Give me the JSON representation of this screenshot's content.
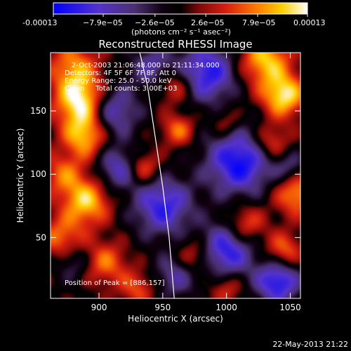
{
  "colorbar": {
    "tick_labels": [
      "-0.00013",
      "−7.9e−05",
      "−2.6e−05",
      "2.6e−05",
      "7.9e−05",
      "0.00013"
    ],
    "tick_values": [
      -0.00013,
      -7.9e-05,
      -2.6e-05,
      2.6e-05,
      7.9e-05,
      0.00013
    ],
    "units_label": "(photons cm⁻² s⁻¹ asec⁻²)",
    "range": [
      -0.00013,
      0.00013
    ]
  },
  "chart_data": {
    "type": "heatmap",
    "title": "Reconstructed RHESSI Image",
    "xlabel": "Heliocentric X (arcsec)",
    "ylabel": "Heliocentric Y (arcsec)",
    "xlim": [
      862,
      1058
    ],
    "ylim": [
      2,
      196
    ],
    "x_ticks": [
      900,
      950,
      1000,
      1050
    ],
    "y_ticks": [
      50,
      100,
      150
    ],
    "colormap": [
      "#0000ff",
      "#6a40b0",
      "#000000",
      "#c01010",
      "#ff8000",
      "#ffff00",
      "#ffffff"
    ],
    "info_lines": [
      "2-Oct-2003 21:06:48.000 to 21:11:34.000",
      "Detectors: 4F 5F 6F 7F 8F, Att 0",
      "Energy Range: 25.0 - 50.0 keV",
      "Clean     Total counts: 3.00E+03"
    ],
    "peak_label": "Position of Peak = [886,157]",
    "peak": [
      886,
      157
    ],
    "limb_curve": [
      [
        932,
        196
      ],
      [
        938,
        170
      ],
      [
        944,
        130
      ],
      [
        950,
        90
      ],
      [
        955,
        50
      ],
      [
        959,
        2
      ]
    ],
    "blobs": [
      {
        "x": 886,
        "y": 157,
        "a": 1.0,
        "s": 14
      },
      {
        "x": 889,
        "y": 130,
        "a": 0.75,
        "s": 12
      },
      {
        "x": 880,
        "y": 185,
        "a": 0.6,
        "s": 14
      },
      {
        "x": 872,
        "y": 100,
        "a": 0.5,
        "s": 12
      },
      {
        "x": 890,
        "y": 78,
        "a": 0.8,
        "s": 13
      },
      {
        "x": 870,
        "y": 50,
        "a": 0.55,
        "s": 12
      },
      {
        "x": 905,
        "y": 30,
        "a": 0.55,
        "s": 12
      },
      {
        "x": 930,
        "y": 10,
        "a": 0.45,
        "s": 10
      },
      {
        "x": 935,
        "y": 105,
        "a": 0.55,
        "s": 9
      },
      {
        "x": 960,
        "y": 170,
        "a": 0.5,
        "s": 10
      },
      {
        "x": 962,
        "y": 135,
        "a": 0.55,
        "s": 9
      },
      {
        "x": 975,
        "y": 35,
        "a": 0.5,
        "s": 10
      },
      {
        "x": 1000,
        "y": 140,
        "a": 0.35,
        "s": 8
      },
      {
        "x": 1030,
        "y": 190,
        "a": 0.8,
        "s": 14
      },
      {
        "x": 1045,
        "y": 162,
        "a": 0.9,
        "s": 12
      },
      {
        "x": 1035,
        "y": 125,
        "a": 0.55,
        "s": 10
      },
      {
        "x": 1055,
        "y": 85,
        "a": 0.7,
        "s": 12
      },
      {
        "x": 1015,
        "y": 60,
        "a": 0.55,
        "s": 11
      },
      {
        "x": 1045,
        "y": 40,
        "a": 0.55,
        "s": 10
      },
      {
        "x": 1000,
        "y": 10,
        "a": 0.4,
        "s": 9
      },
      {
        "x": 910,
        "y": 150,
        "a": -0.7,
        "s": 14
      },
      {
        "x": 915,
        "y": 105,
        "a": -0.6,
        "s": 12
      },
      {
        "x": 950,
        "y": 75,
        "a": -0.8,
        "s": 16
      },
      {
        "x": 985,
        "y": 180,
        "a": -0.85,
        "s": 16
      },
      {
        "x": 1010,
        "y": 110,
        "a": -0.95,
        "s": 18
      },
      {
        "x": 1000,
        "y": 40,
        "a": -0.85,
        "s": 15
      },
      {
        "x": 1040,
        "y": 15,
        "a": -0.9,
        "s": 12
      },
      {
        "x": 880,
        "y": 30,
        "a": -0.35,
        "s": 10
      },
      {
        "x": 960,
        "y": 20,
        "a": -0.5,
        "s": 12
      },
      {
        "x": 1050,
        "y": 105,
        "a": -0.4,
        "s": 9
      },
      {
        "x": 942,
        "y": 185,
        "a": -0.5,
        "s": 12
      }
    ]
  },
  "footer": {
    "timestamp": "22-May-2013 21:22"
  }
}
